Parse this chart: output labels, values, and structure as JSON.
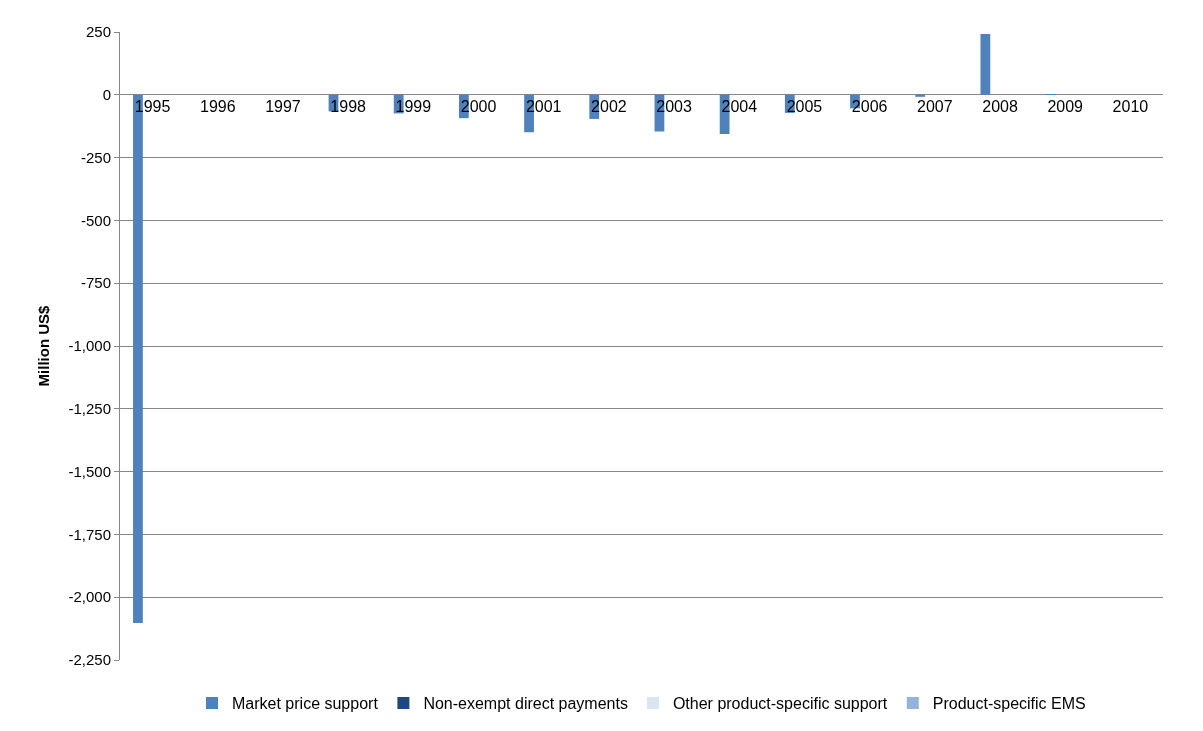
{
  "chart_data": {
    "type": "bar",
    "ylabel": "Million US$",
    "categories": [
      "1995",
      "1996",
      "1997",
      "1998",
      "1999",
      "2000",
      "2001",
      "2002",
      "2003",
      "2004",
      "2005",
      "2006",
      "2007",
      "2008",
      "2009",
      "2010"
    ],
    "series": [
      {
        "name": "Market price support",
        "color": "#4f81bd",
        "values": [
          -2103,
          0,
          0,
          -66,
          -74,
          -93,
          -149,
          -96,
          -146,
          -156,
          -72,
          -54,
          -8,
          242,
          3,
          0
        ]
      },
      {
        "name": "Non-exempt direct payments",
        "color": "#1f497d",
        "values": [
          0,
          0,
          0,
          0,
          0,
          0,
          0,
          0,
          0,
          0,
          0,
          0,
          0,
          0,
          0,
          0
        ]
      },
      {
        "name": "Other product-specific support",
        "color": "#dbe5f1",
        "values": [
          0,
          0,
          0,
          0,
          0,
          0,
          0,
          0,
          0,
          0,
          0,
          0,
          0,
          0,
          0,
          0
        ]
      },
      {
        "name": "Product-specific EMS",
        "color": "#95b3d7",
        "values": [
          0,
          0,
          0,
          0,
          0,
          0,
          0,
          0,
          0,
          0,
          0,
          0,
          0,
          0,
          0,
          0
        ]
      }
    ],
    "ylim": [
      -2250,
      250
    ],
    "yticks": [
      {
        "value": 250,
        "label": "250"
      },
      {
        "value": 0,
        "label": "0"
      },
      {
        "value": -250,
        "label": "-250"
      },
      {
        "value": -500,
        "label": "-500"
      },
      {
        "value": -750,
        "label": "-750"
      },
      {
        "value": -1000,
        "label": "-1,000"
      },
      {
        "value": -1250,
        "label": "-1,250"
      },
      {
        "value": -1500,
        "label": "-1,500"
      },
      {
        "value": -1750,
        "label": "-1,750"
      },
      {
        "value": -2000,
        "label": "-2,000"
      },
      {
        "value": -2250,
        "label": "-2,250"
      }
    ],
    "grid": "y",
    "legend": "bottom"
  }
}
